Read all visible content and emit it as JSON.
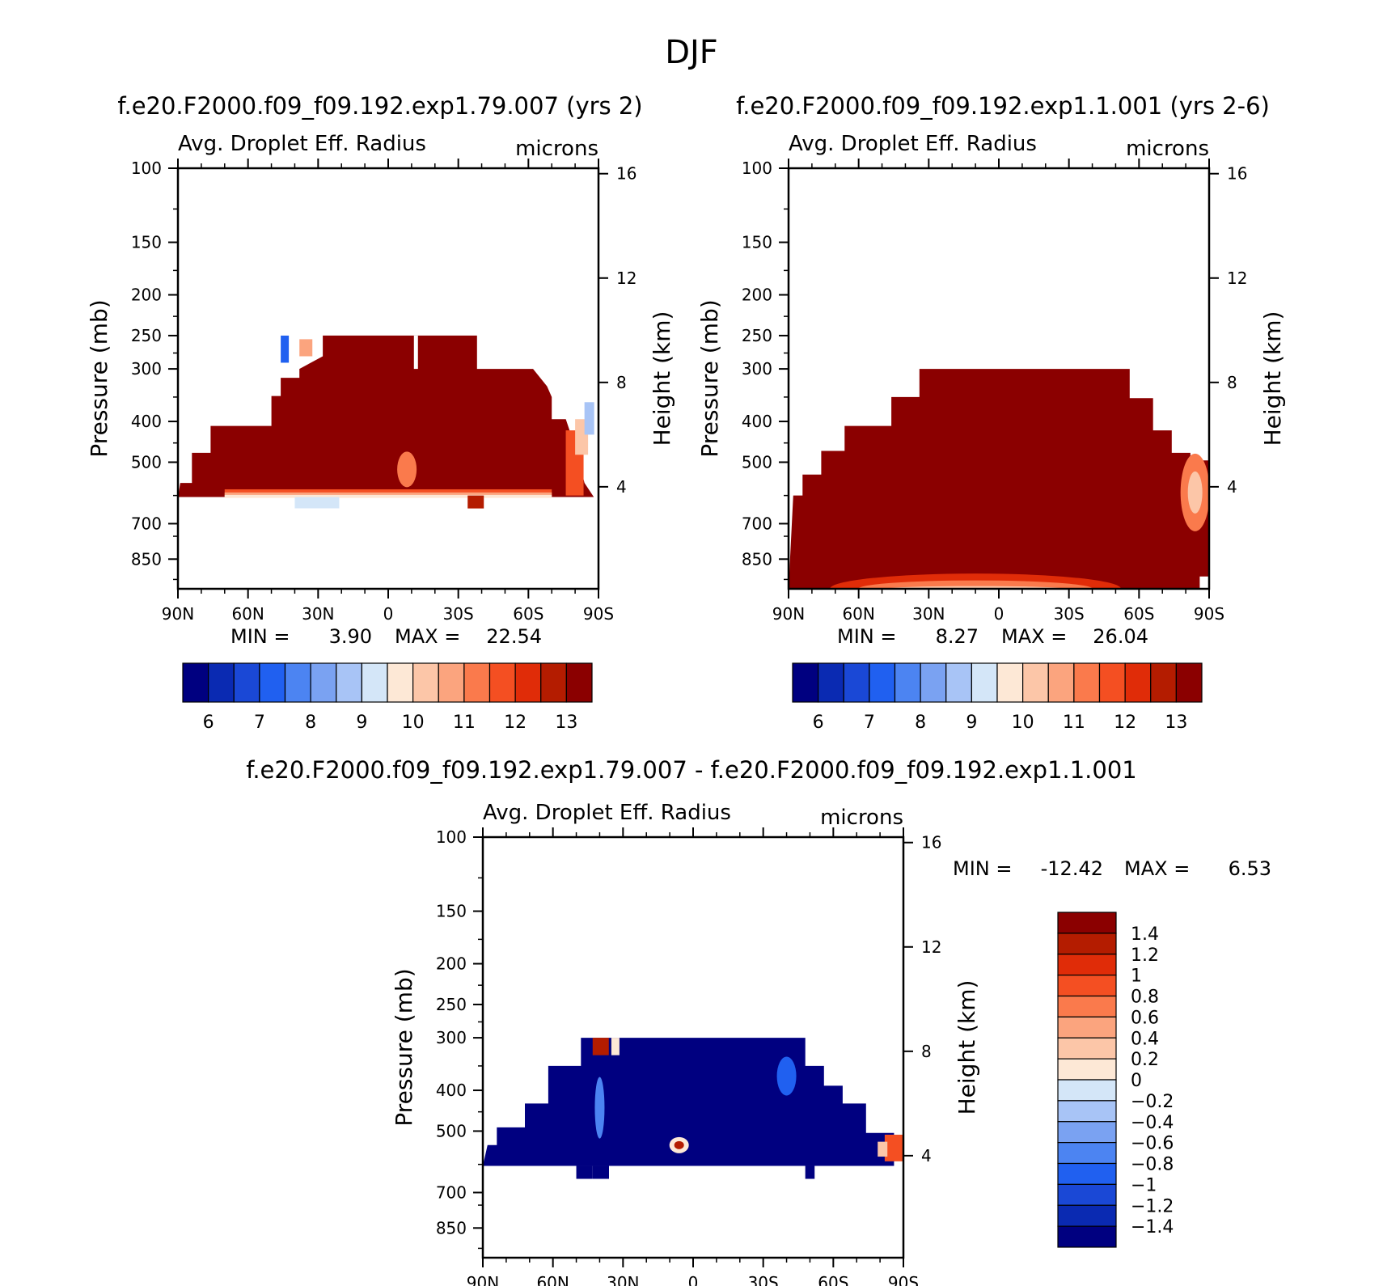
{
  "title": "DJF",
  "colors": {
    "abs_levels": [
      "#000080",
      "#0a2ab2",
      "#1a48d6",
      "#2060f0",
      "#4c84f2",
      "#7aa2f2",
      "#a8c4f6",
      "#d4e6f8",
      "#fde8d6",
      "#fcc6a8",
      "#fba47e",
      "#fa7a4c",
      "#f44f22",
      "#e02c08",
      "#b41c00",
      "#8b0000"
    ],
    "diff_levels": [
      "#000080",
      "#0a2ab2",
      "#1a48d6",
      "#2060f0",
      "#4c84f2",
      "#7aa2f2",
      "#a8c4f6",
      "#d4e6f8",
      "#fde8d6",
      "#fcc6a8",
      "#fba47e",
      "#fa7a4c",
      "#f44f22",
      "#e02c08",
      "#b41c00",
      "#8b0000"
    ]
  },
  "chart_data": [
    {
      "type": "heatmap",
      "id": "panel1",
      "title": "f.e20.F2000.f09_f09.192.exp1.79.007 (yrs 2)",
      "variable": "Avg. Droplet Eff. Radius",
      "units": "microns",
      "ylabel": "Pressure (mb)",
      "ylabel_right": "Height (km)",
      "x_ticks": [
        "90N",
        "60N",
        "30N",
        "0",
        "30S",
        "60S",
        "90S"
      ],
      "x_range": [
        90,
        -90
      ],
      "y_ticks": [
        100,
        150,
        200,
        250,
        300,
        400,
        500,
        700,
        850
      ],
      "y_range": [
        100,
        1000
      ],
      "height_ticks": [
        16,
        12,
        8,
        4
      ],
      "min_label": "MIN =",
      "min_value": "3.90",
      "max_label": "MAX =",
      "max_value": "22.54",
      "colorbar_labels": [
        "6",
        "7",
        "8",
        "9",
        "10",
        "11",
        "12",
        "13"
      ],
      "colorbar_levels": [
        5.5,
        6,
        6.5,
        7,
        7.5,
        8,
        8.5,
        9,
        9.5,
        10,
        10.5,
        11,
        11.5,
        12,
        12.5,
        13
      ],
      "data_top_hPa": 250,
      "data_bottom_hPa": 600,
      "dominant_value": 13
    },
    {
      "type": "heatmap",
      "id": "panel2",
      "title": "f.e20.F2000.f09_f09.192.exp1.1.001 (yrs 2-6)",
      "variable": "Avg. Droplet Eff. Radius",
      "units": "microns",
      "ylabel": "Pressure (mb)",
      "ylabel_right": "Height (km)",
      "x_ticks": [
        "90N",
        "60N",
        "30N",
        "0",
        "30S",
        "60S",
        "90S"
      ],
      "x_range": [
        90,
        -90
      ],
      "y_ticks": [
        100,
        150,
        200,
        250,
        300,
        400,
        500,
        700,
        850
      ],
      "y_range": [
        100,
        1000
      ],
      "height_ticks": [
        16,
        12,
        8,
        4
      ],
      "min_label": "MIN =",
      "min_value": "8.27",
      "max_label": "MAX =",
      "max_value": "26.04",
      "colorbar_labels": [
        "6",
        "7",
        "8",
        "9",
        "10",
        "11",
        "12",
        "13"
      ],
      "colorbar_levels": [
        5.5,
        6,
        6.5,
        7,
        7.5,
        8,
        8.5,
        9,
        9.5,
        10,
        10.5,
        11,
        11.5,
        12,
        12.5,
        13
      ],
      "data_top_hPa": 300,
      "data_bottom_hPa": 1000,
      "dominant_value": 13
    },
    {
      "type": "heatmap",
      "id": "panel3",
      "title": "f.e20.F2000.f09_f09.192.exp1.79.007 - f.e20.F2000.f09_f09.192.exp1.1.001",
      "variable": "Avg. Droplet Eff. Radius",
      "units": "microns",
      "ylabel": "Pressure (mb)",
      "ylabel_right": "Height (km)",
      "x_ticks": [
        "90N",
        "60N",
        "30N",
        "0",
        "30S",
        "60S",
        "90S"
      ],
      "x_range": [
        90,
        -90
      ],
      "y_ticks": [
        100,
        150,
        200,
        250,
        300,
        400,
        500,
        700,
        850
      ],
      "y_range": [
        100,
        1000
      ],
      "height_ticks": [
        16,
        12,
        8,
        4
      ],
      "min_label": "MIN =",
      "min_value": "-12.42",
      "max_label": "MAX =",
      "max_value": "6.53",
      "colorbar_labels": [
        "1.4",
        "1.2",
        "1",
        "0.8",
        "0.6",
        "0.4",
        "0.2",
        "0",
        "-0.2",
        "-0.4",
        "-0.6",
        "-0.8",
        "-1",
        "-1.2",
        "-1.4"
      ],
      "data_top_hPa": 300,
      "data_bottom_hPa": 600,
      "dominant_value": -1.5
    }
  ]
}
